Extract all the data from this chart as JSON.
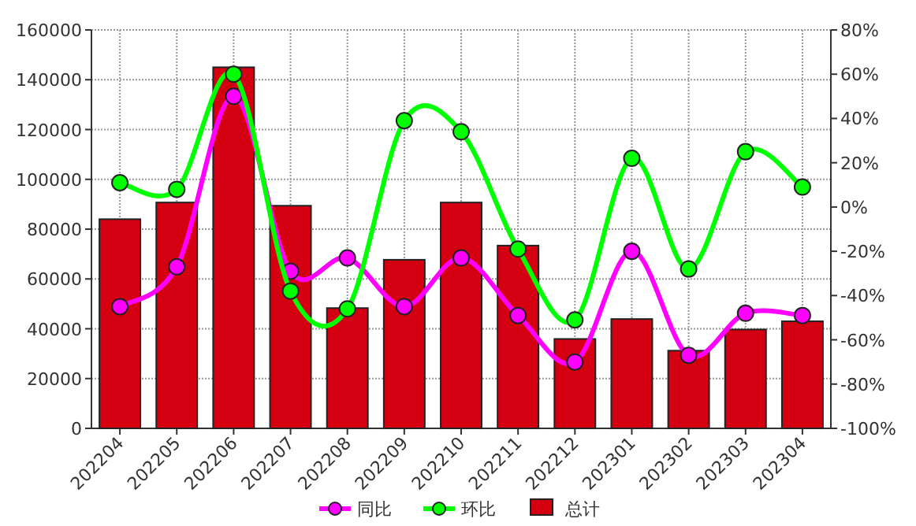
{
  "chart_data": {
    "type": "bar",
    "categories": [
      "202204",
      "202205",
      "202206",
      "202207",
      "202208",
      "202209",
      "202210",
      "202211",
      "202212",
      "202301",
      "202302",
      "202303",
      "202304"
    ],
    "series": [
      {
        "name": "同比",
        "type": "line",
        "axis": "y2",
        "color": "#ff00ff",
        "values": [
          -45,
          -27,
          50,
          -29,
          -23,
          -45,
          -23,
          -49,
          -70,
          -20,
          -67,
          -48,
          -49
        ]
      },
      {
        "name": "环比",
        "type": "line",
        "axis": "y2",
        "color": "#00ff00",
        "values": [
          11,
          8,
          60,
          -38,
          -46,
          39,
          34,
          -19,
          -51,
          22,
          -28,
          25,
          9
        ]
      },
      {
        "name": "总计",
        "color": "#d40012",
        "values": [
          84000,
          90700,
          145000,
          89400,
          48300,
          67700,
          90700,
          73400,
          35900,
          43900,
          31200,
          39700,
          43000
        ]
      }
    ],
    "ylim": [
      0,
      160000
    ],
    "yticks": [
      0,
      20000,
      40000,
      60000,
      80000,
      100000,
      120000,
      140000,
      160000
    ],
    "y2lim": [
      -100,
      80
    ],
    "y2ticks": [
      {
        "value": -100,
        "label": "-100%"
      },
      {
        "value": -80,
        "label": "-80%"
      },
      {
        "value": -60,
        "label": "-60%"
      },
      {
        "value": -40,
        "label": "-40%"
      },
      {
        "value": -20,
        "label": "-20%"
      },
      {
        "value": 0,
        "label": "0%"
      },
      {
        "value": 20,
        "label": "20%"
      },
      {
        "value": 40,
        "label": "40%"
      },
      {
        "value": 60,
        "label": "60%"
      },
      {
        "value": 80,
        "label": "80%"
      }
    ],
    "grid": true,
    "legend": "bottom",
    "marker": "circle"
  }
}
